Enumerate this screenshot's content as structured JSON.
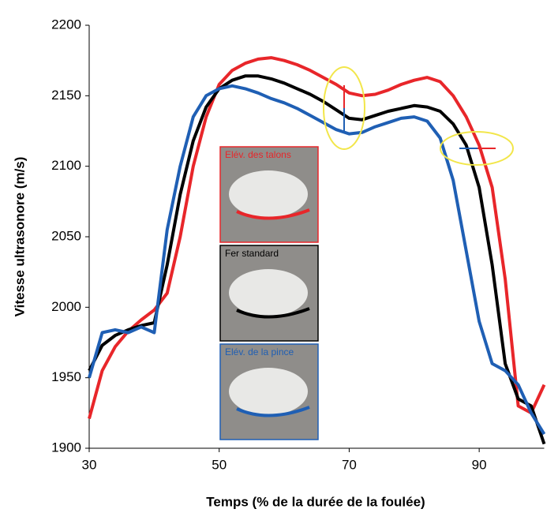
{
  "chart_data": {
    "type": "line",
    "x_label": "Temps (% de la durée de la foulée)",
    "y_label": "Vitesse ultrasonore (m/s)",
    "x": [
      30,
      32,
      34,
      36,
      38,
      40,
      42,
      44,
      46,
      48,
      50,
      52,
      54,
      56,
      58,
      60,
      62,
      64,
      66,
      68,
      70,
      72,
      74,
      76,
      78,
      80,
      82,
      84,
      86,
      88,
      90,
      92,
      94,
      96,
      98,
      100
    ],
    "series": [
      {
        "name": "Elév. des talons",
        "color": "#e8262a",
        "values": [
          1921,
          1955,
          1972,
          1983,
          1991,
          1998,
          2010,
          2050,
          2100,
          2135,
          2158,
          2168,
          2173,
          2176,
          2177,
          2175,
          2172,
          2168,
          2163,
          2158,
          2152,
          2150,
          2151,
          2154,
          2158,
          2161,
          2163,
          2160,
          2150,
          2135,
          2115,
          2085,
          2020,
          1930,
          1925,
          1945
        ]
      },
      {
        "name": "Fer standard",
        "color": "#000000",
        "values": [
          1955,
          1973,
          1980,
          1984,
          1987,
          1989,
          2030,
          2080,
          2118,
          2142,
          2155,
          2161,
          2164,
          2164,
          2162,
          2159,
          2155,
          2151,
          2146,
          2140,
          2134,
          2133,
          2136,
          2139,
          2141,
          2143,
          2142,
          2139,
          2130,
          2115,
          2085,
          2030,
          1960,
          1935,
          1930,
          1903
        ]
      },
      {
        "name": "Elév. de la pince",
        "color": "#1f5fb4",
        "values": [
          1950,
          1982,
          1984,
          1982,
          1986,
          1982,
          2055,
          2100,
          2135,
          2150,
          2155,
          2157,
          2155,
          2152,
          2148,
          2145,
          2141,
          2136,
          2131,
          2126,
          2123,
          2124,
          2128,
          2131,
          2134,
          2135,
          2132,
          2120,
          2090,
          2040,
          1990,
          1960,
          1955,
          1945,
          1925,
          1910
        ]
      }
    ],
    "xlim": [
      30,
      100
    ],
    "xticks": [
      30,
      50,
      70,
      90
    ],
    "ylim": [
      1900,
      2200
    ],
    "yticks": [
      1900,
      1950,
      2000,
      2050,
      2100,
      2150,
      2200
    ],
    "grid": false
  }
}
